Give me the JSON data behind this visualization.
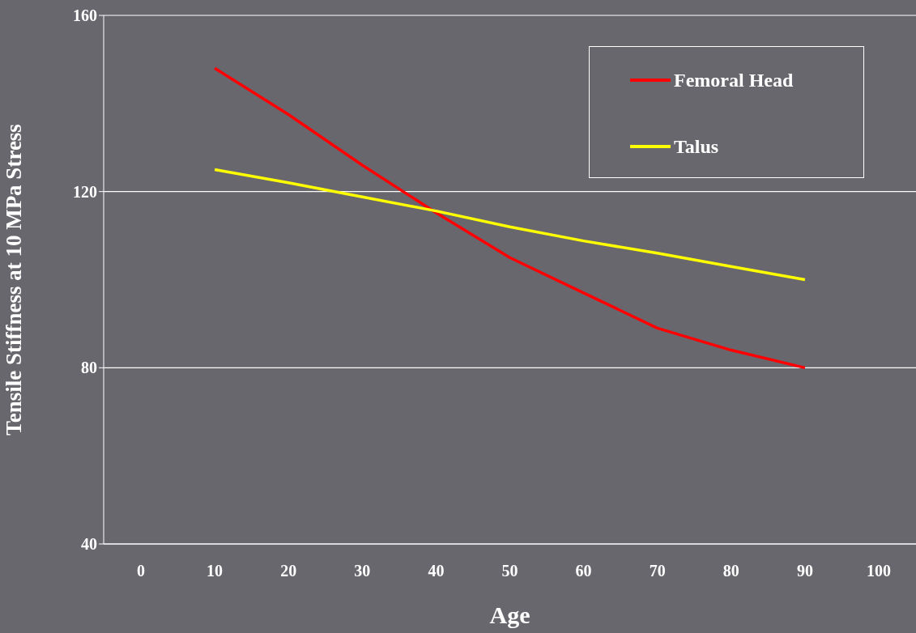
{
  "chart_data": {
    "type": "line",
    "xlabel": "Age",
    "ylabel": "Tensile Stiffness at 10 MPa Stress",
    "categories": [
      "0",
      "10",
      "20",
      "30",
      "40",
      "50",
      "60",
      "70",
      "80",
      "90",
      "100"
    ],
    "series": [
      {
        "name": "Femoral Head",
        "color": "#ff0000",
        "values": [
          null,
          148,
          137.5,
          126,
          115.2,
          105,
          97,
          89,
          84,
          80,
          null
        ]
      },
      {
        "name": "Talus",
        "color": "#ffff00",
        "values": [
          null,
          125,
          122,
          118.8,
          115.6,
          112,
          108.8,
          106,
          103,
          100,
          null
        ]
      }
    ],
    "ylim": [
      40,
      160
    ],
    "yticks": [
      40,
      80,
      120,
      160
    ],
    "grid": "y",
    "legend": "top right",
    "marker": "none",
    "line_style": "solid"
  }
}
